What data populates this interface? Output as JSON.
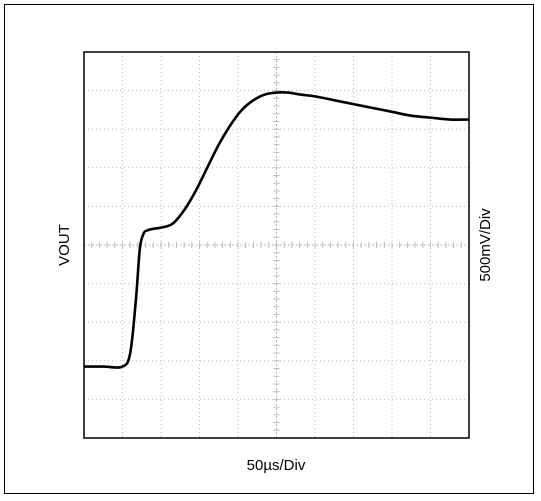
{
  "chart_data": {
    "type": "line",
    "title": "",
    "xlabel": "50µs/Div",
    "ylabel": "VOUT",
    "ylabel_right": "500mV/Div",
    "x_divisions": 10,
    "y_divisions": 10,
    "xlim": [
      0,
      10
    ],
    "ylim": [
      0,
      10
    ],
    "grid": "dotted",
    "colors": {
      "trace": "#000000",
      "grid": "#bbbbbb",
      "axis": "#000000"
    },
    "series": [
      {
        "x": [
          0,
          0.5,
          1.0,
          1.2,
          1.35,
          1.45,
          1.55,
          1.65,
          1.8,
          2.0,
          2.3,
          2.6,
          2.9,
          3.2,
          3.5,
          3.8,
          4.1,
          4.4,
          4.7,
          5.0,
          5.3,
          5.6,
          6.0,
          6.5,
          7.0,
          7.5,
          8.0,
          8.5,
          9.0,
          9.5,
          10.0
        ],
        "y": [
          1.85,
          1.85,
          1.85,
          2.2,
          3.6,
          4.9,
          5.3,
          5.38,
          5.42,
          5.45,
          5.55,
          5.9,
          6.4,
          7.0,
          7.6,
          8.1,
          8.5,
          8.75,
          8.9,
          8.95,
          8.95,
          8.9,
          8.85,
          8.75,
          8.65,
          8.55,
          8.45,
          8.35,
          8.3,
          8.25,
          8.25
        ]
      }
    ]
  }
}
